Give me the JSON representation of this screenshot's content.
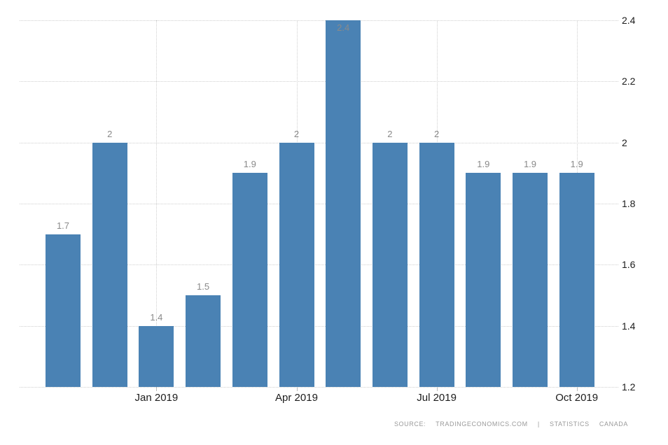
{
  "chart_data": {
    "type": "bar",
    "title": "",
    "xlabel": "",
    "ylabel": "",
    "values": [
      1.7,
      2,
      1.4,
      1.5,
      1.9,
      2,
      2.4,
      2,
      2,
      1.9,
      1.9,
      1.9
    ],
    "bar_labels": [
      "1.7",
      "2",
      "1.4",
      "1.5",
      "1.9",
      "2",
      "2.4",
      "2",
      "2",
      "1.9",
      "1.9",
      "1.9"
    ],
    "x_ticks": [
      {
        "index": 2,
        "label": "Jan 2019"
      },
      {
        "index": 5,
        "label": "Apr 2019"
      },
      {
        "index": 8,
        "label": "Jul 2019"
      },
      {
        "index": 11,
        "label": "Oct 2019"
      }
    ],
    "y_ticks": [
      "1.2",
      "1.4",
      "1.6",
      "1.8",
      "2",
      "2.2",
      "2.4"
    ],
    "ylim": [
      1.2,
      2.4
    ],
    "grid": "dotted",
    "legend": "none",
    "y_axis_side": "right",
    "source": "SOURCE:  TRADINGECONOMICS.COM  |  STATISTICS  CANADA"
  },
  "colors": {
    "bar": "#4a82b4",
    "bar_value_label": "#8a8a8a",
    "axis_text": "#1c1c1c",
    "gridline": "#cfcfcf",
    "tick": "#bbbbbb",
    "source_text": "#9a9a9a",
    "background": "#ffffff"
  }
}
